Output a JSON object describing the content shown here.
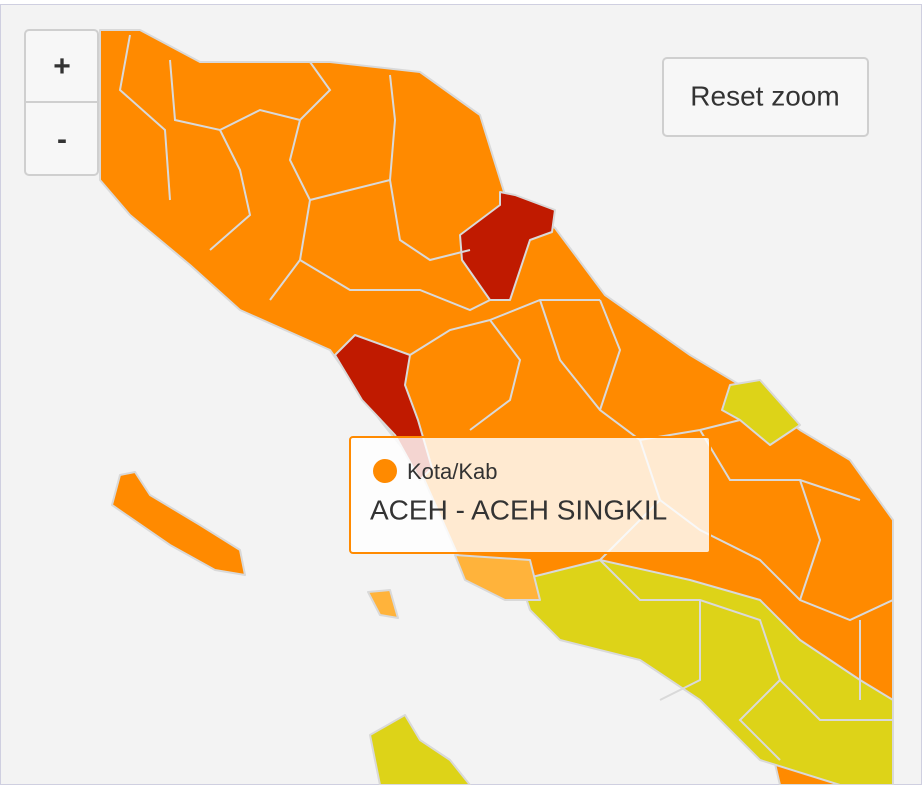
{
  "zoom_controls": {
    "zoom_in": "+",
    "zoom_out": "-"
  },
  "reset_zoom": "Reset zoom",
  "tooltip": {
    "series": "Kota/Kab",
    "region": "ACEH - ACEH SINGKIL"
  }
}
